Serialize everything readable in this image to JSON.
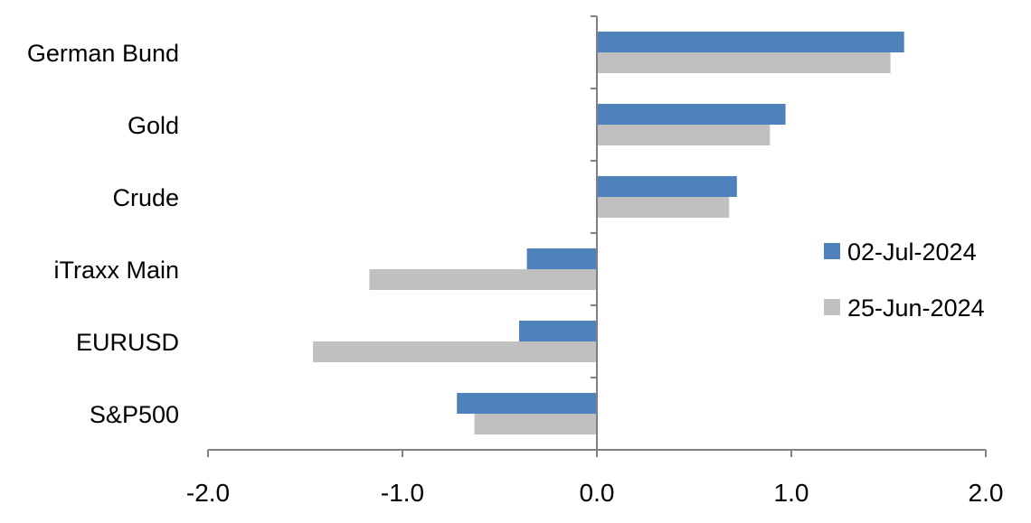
{
  "chart_data": {
    "type": "bar",
    "orientation": "horizontal",
    "categories": [
      "German Bund",
      "Gold",
      "Crude",
      "iTraxx Main",
      "EURUSD",
      "S&P500"
    ],
    "series": [
      {
        "name": "02-Jul-2024",
        "color": "#4F81BD",
        "values": [
          1.58,
          0.97,
          0.72,
          -0.36,
          -0.4,
          -0.72
        ]
      },
      {
        "name": "25-Jun-2024",
        "color": "#C0C0C0",
        "values": [
          1.51,
          0.89,
          0.68,
          -1.17,
          -1.46,
          -0.63
        ]
      }
    ],
    "xlim": [
      -2.0,
      2.0
    ],
    "xticks": [
      "-2.0",
      "-1.0",
      "0.0",
      "1.0",
      "2.0"
    ],
    "xtick_values": [
      -2,
      -1,
      0,
      1,
      2
    ],
    "title": "",
    "xlabel": "",
    "ylabel": "",
    "grid": false,
    "legend_position": "right"
  }
}
